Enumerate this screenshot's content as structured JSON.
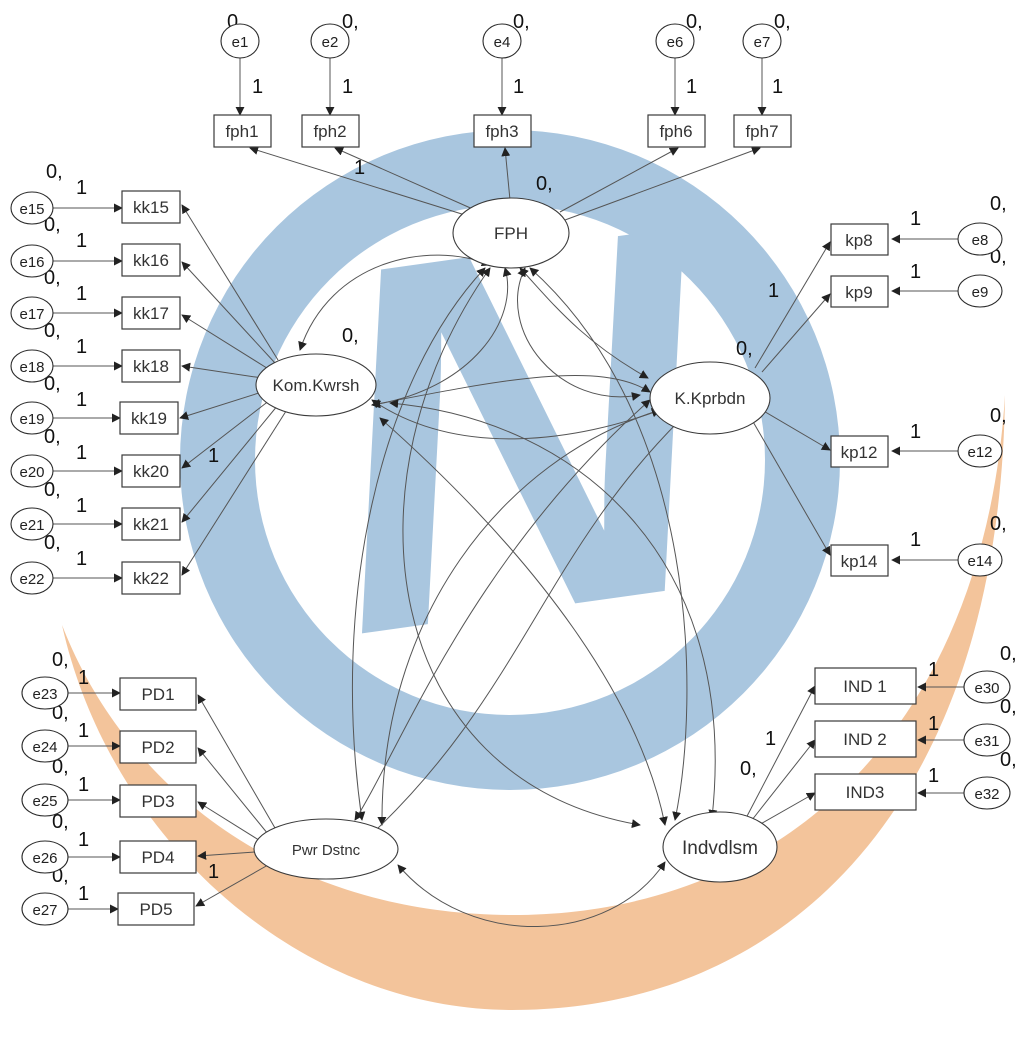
{
  "watermark": {
    "blue": "#a9c6df",
    "orange": "#f3c49b",
    "letter": "N"
  },
  "latents": {
    "fph": "FPH",
    "kom": "Kom.Kwrsh",
    "kkp": "K.Kprbdn",
    "pwr": "Pwr Dstnc",
    "ind": "Indvdlsm"
  },
  "observed": {
    "fph1": "fph1",
    "fph2": "fph2",
    "fph3": "fph3",
    "fph6": "fph6",
    "fph7": "fph7",
    "kk15": "kk15",
    "kk16": "kk16",
    "kk17": "kk17",
    "kk18": "kk18",
    "kk19": "kk19",
    "kk20": "kk20",
    "kk21": "kk21",
    "kk22": "kk22",
    "kp8": "kp8",
    "kp9": "kp9",
    "kp12": "kp12",
    "kp14": "kp14",
    "pd1": "PD1",
    "pd2": "PD2",
    "pd3": "PD3",
    "pd4": "PD4",
    "pd5": "PD5",
    "ind1": "IND 1",
    "ind2": "IND 2",
    "ind3": "IND3"
  },
  "errors": {
    "e1": "e1",
    "e2": "e2",
    "e4": "e4",
    "e6": "e6",
    "e7": "e7",
    "e15": "e15",
    "e16": "e16",
    "e17": "e17",
    "e18": "e18",
    "e19": "e19",
    "e20": "e20",
    "e21": "e21",
    "e22": "e22",
    "e8": "e8",
    "e9": "e9",
    "e12": "e12",
    "e14": "e14",
    "e23": "e23",
    "e24": "e24",
    "e25": "e25",
    "e26": "e26",
    "e27": "e27",
    "e30": "e30",
    "e31": "e31",
    "e32": "e32"
  },
  "labels": {
    "zero": "0,",
    "one": "1"
  }
}
